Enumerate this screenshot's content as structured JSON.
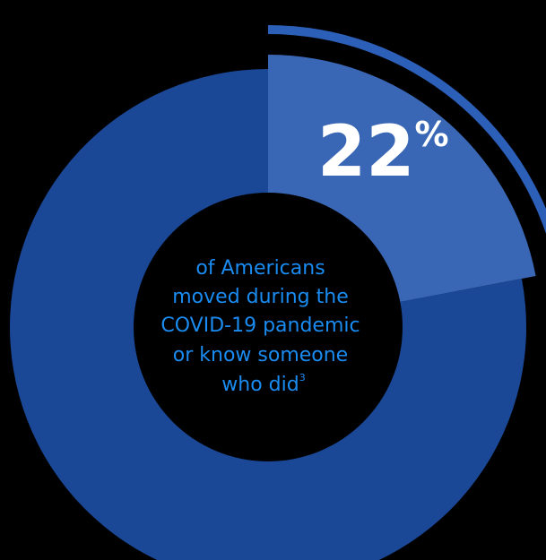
{
  "chart_data": {
    "type": "pie",
    "title": "",
    "slices": [
      {
        "label": "22%",
        "value": 22,
        "color": "#3a67b5",
        "highlight": true
      },
      {
        "label": "",
        "value": 78,
        "color": "#1a4896",
        "highlight": false
      }
    ],
    "highlight_value_number": "22",
    "highlight_value_symbol": "%",
    "caption_lines": [
      "of Americans",
      "moved during the",
      "COVID-19 pandemic",
      "or know someone",
      "who did"
    ],
    "caption_superscript": "3",
    "colors": {
      "background": "#000000",
      "ring": "#1a4896",
      "highlight": "#3a67b5",
      "outer_arc": "#2c5fb8",
      "caption": "#1a8bf0",
      "value_text": "#ffffff"
    }
  }
}
